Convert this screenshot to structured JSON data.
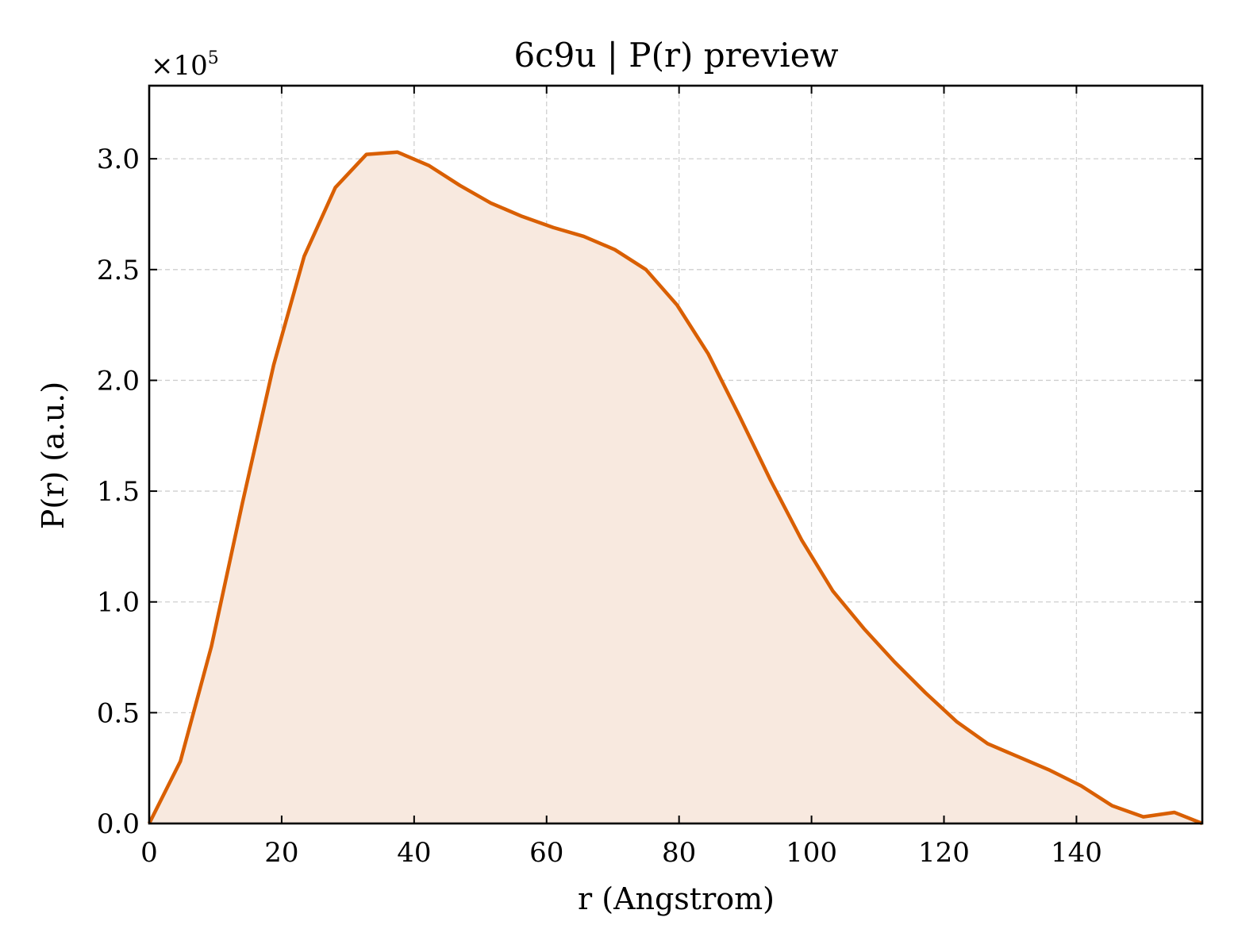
{
  "chart_data": {
    "type": "area",
    "title": "6c9u | P(r) preview",
    "xlabel": "r (Angstrom)",
    "ylabel": "P(r) (a.u.)",
    "y_offset_label": {
      "prefix": "×10",
      "exponent": "5"
    },
    "xlim": [
      0,
      159
    ],
    "ylim": [
      0,
      3.33
    ],
    "y_scale_factor": 100000,
    "x_ticks": [
      0,
      20,
      40,
      60,
      80,
      100,
      120,
      140
    ],
    "x_tick_labels": [
      "0",
      "20",
      "40",
      "60",
      "80",
      "100",
      "120",
      "140"
    ],
    "y_ticks": [
      0.0,
      0.5,
      1.0,
      1.5,
      2.0,
      2.5,
      3.0
    ],
    "y_tick_labels": [
      "0.0",
      "0.5",
      "1.0",
      "1.5",
      "2.0",
      "2.5",
      "3.0"
    ],
    "grid": true,
    "series": [
      {
        "color": "#d95f02",
        "fill_color": "#f8e9df",
        "x": [
          0,
          4.7,
          9.4,
          14.1,
          18.8,
          23.4,
          28.1,
          32.8,
          37.5,
          42.2,
          46.9,
          51.6,
          56.3,
          61.0,
          65.6,
          70.3,
          75.0,
          79.7,
          84.4,
          89.1,
          93.8,
          98.5,
          103.2,
          107.9,
          112.5,
          117.2,
          121.9,
          126.6,
          131.3,
          136.0,
          140.7,
          145.4,
          150.1,
          154.8,
          159.0
        ],
        "y": [
          0.0,
          0.28,
          0.8,
          1.45,
          2.07,
          2.56,
          2.87,
          3.02,
          3.03,
          2.97,
          2.88,
          2.8,
          2.74,
          2.69,
          2.65,
          2.59,
          2.5,
          2.34,
          2.12,
          1.84,
          1.55,
          1.28,
          1.05,
          0.88,
          0.73,
          0.59,
          0.46,
          0.36,
          0.3,
          0.24,
          0.17,
          0.08,
          0.03,
          0.05,
          0.0
        ]
      }
    ]
  }
}
